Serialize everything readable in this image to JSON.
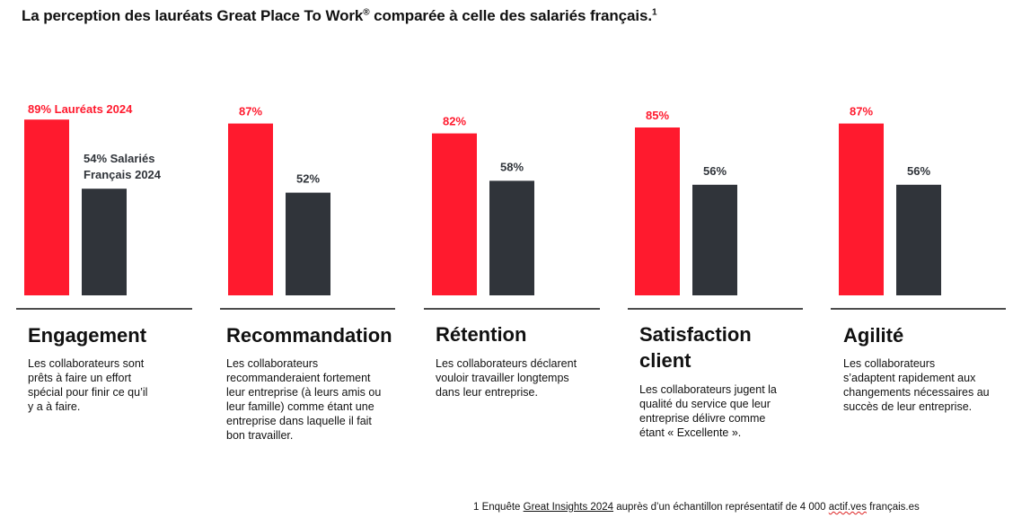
{
  "title": "La perception des lauréats Great Place To Work",
  "title_mark": "®",
  "title_suffix": " comparée à celle des salariés français.",
  "title_note": "1",
  "chart_data": {
    "type": "bar",
    "categories": [
      "Engagement",
      "Recommandation",
      "Rétention",
      "Satisfaction client",
      "Agilité"
    ],
    "series": [
      {
        "name": "Lauréats 2024",
        "values": [
          89,
          87,
          82,
          85,
          87
        ],
        "color": "#ff1a2e"
      },
      {
        "name": "Salariés Français 2024",
        "values": [
          54,
          52,
          58,
          56,
          56
        ],
        "color": "#30343a"
      }
    ],
    "value_labels": {
      "laureats": [
        "89% Lauréats 2024",
        "87%",
        "82%",
        "85%",
        "87%"
      ],
      "salaries_first": [
        "54% Salariés",
        "Français 2024"
      ],
      "salaries": [
        "52%",
        "58%",
        "56%",
        "56%"
      ]
    },
    "ylim": [
      0,
      100
    ],
    "grid": false
  },
  "metrics": [
    {
      "title": [
        "Engagement"
      ],
      "desc": [
        "Les collaborateurs sont",
        "prêts à faire un effort",
        "spécial pour finir ce qu’il",
        "y a à faire."
      ]
    },
    {
      "title": [
        "Recommandation"
      ],
      "desc": [
        "Les collaborateurs",
        "recommanderaient fortement",
        "leur entreprise (à leurs amis ou",
        "leur famille) comme étant une",
        "entreprise dans laquelle il fait",
        "bon travailler."
      ]
    },
    {
      "title": [
        "Rétention"
      ],
      "desc": [
        "Les collaborateurs déclarent",
        "vouloir travailler longtemps",
        "dans leur entreprise."
      ]
    },
    {
      "title": [
        "Satisfaction",
        "client"
      ],
      "desc": [
        "Les collaborateurs jugent la",
        "qualité du service que leur",
        "entreprise délivre comme",
        "étant « Excellente »."
      ]
    },
    {
      "title": [
        "Agilité"
      ],
      "desc": [
        "Les collaborateurs",
        "s’adaptent rapidement aux",
        "changements nécessaires au",
        "succès de leur entreprise."
      ]
    }
  ],
  "footnote": {
    "pre": "1 Enquête ",
    "link": "Great Insights 2024",
    "mid": " auprès d’un échantillon représentatif de 4 000 ",
    "actif": "actif.ves",
    "post": " français.es"
  }
}
